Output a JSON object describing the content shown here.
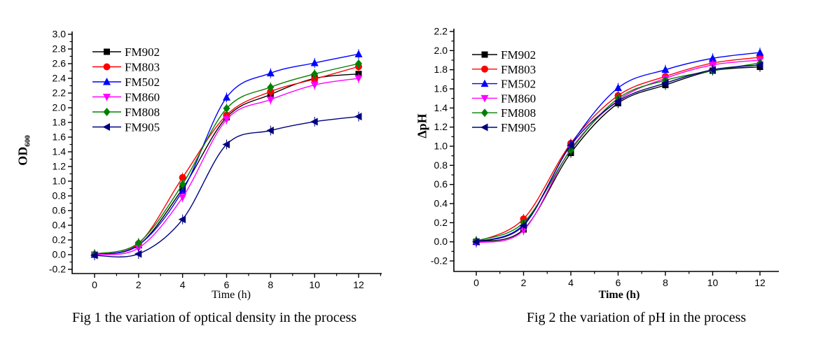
{
  "page": {
    "background": "#ffffff"
  },
  "chart_data": [
    {
      "id": "fig1",
      "type": "line",
      "caption": "Fig 1 the variation of optical density in the process",
      "xlabel": "Time (h)",
      "ylabel": "OD",
      "ylabel_sub": "600",
      "x": [
        0,
        2,
        4,
        6,
        8,
        10,
        12
      ],
      "xticks": [
        "0",
        "2",
        "4",
        "6",
        "8",
        "10",
        "12"
      ],
      "xlim": [
        0,
        12
      ],
      "ylim": [
        -0.2,
        3.0
      ],
      "ytick_step": 0.2,
      "yticks": [
        "3.0",
        "2.8",
        "2.6",
        "2.4",
        "2.2",
        "2.0",
        "1.8",
        "1.6",
        "1.4",
        "1.2",
        "1.0",
        "0.8",
        "0.6",
        "0.4",
        "0.2",
        "0.0",
        "-0.2"
      ],
      "grid": false,
      "legend_position": "upper-left",
      "series": [
        {
          "name": "FM902",
          "color": "#000000",
          "marker": "square",
          "values": [
            0.0,
            0.13,
            0.9,
            1.87,
            2.18,
            2.4,
            2.46
          ]
        },
        {
          "name": "FM803",
          "color": "#ff0000",
          "marker": "circle",
          "values": [
            0.0,
            0.15,
            1.05,
            1.9,
            2.22,
            2.39,
            2.56
          ]
        },
        {
          "name": "FM502",
          "color": "#0000ff",
          "marker": "triangle-up",
          "values": [
            0.0,
            0.13,
            0.87,
            2.14,
            2.47,
            2.61,
            2.73
          ]
        },
        {
          "name": "FM860",
          "color": "#ff00ff",
          "marker": "triangle-down",
          "values": [
            0.0,
            0.09,
            0.78,
            1.84,
            2.11,
            2.31,
            2.4
          ]
        },
        {
          "name": "FM808",
          "color": "#008000",
          "marker": "diamond",
          "values": [
            0.01,
            0.16,
            0.96,
            1.99,
            2.28,
            2.46,
            2.6
          ]
        },
        {
          "name": "FM905",
          "color": "#000080",
          "marker": "triangle-left",
          "values": [
            -0.01,
            0.01,
            0.48,
            1.5,
            1.69,
            1.81,
            1.88
          ]
        }
      ]
    },
    {
      "id": "fig2",
      "type": "line",
      "caption": "Fig 2 the variation of pH in the process",
      "xlabel": "Time (h)",
      "ylabel": "ΔpH",
      "ylabel_sub": "",
      "x": [
        0,
        2,
        4,
        6,
        8,
        10,
        12
      ],
      "xticks": [
        "0",
        "2",
        "4",
        "6",
        "8",
        "10",
        "12"
      ],
      "xlim": [
        0,
        12
      ],
      "ylim": [
        -0.2,
        2.2
      ],
      "ytick_step": 0.2,
      "yticks": [
        "2.2",
        "2.0",
        "1.8",
        "1.6",
        "1.4",
        "1.2",
        "1.0",
        "0.8",
        "0.6",
        "0.4",
        "0.2",
        "0.0",
        "-0.2"
      ],
      "grid": false,
      "legend_position": "upper-left",
      "series": [
        {
          "name": "FM902",
          "color": "#000000",
          "marker": "square",
          "values": [
            0.0,
            0.13,
            0.93,
            1.45,
            1.64,
            1.79,
            1.83
          ]
        },
        {
          "name": "FM803",
          "color": "#ff0000",
          "marker": "circle",
          "values": [
            0.0,
            0.24,
            1.03,
            1.53,
            1.73,
            1.87,
            1.93
          ]
        },
        {
          "name": "FM502",
          "color": "#0000ff",
          "marker": "triangle-up",
          "values": [
            0.0,
            0.18,
            1.02,
            1.61,
            1.8,
            1.92,
            1.98
          ]
        },
        {
          "name": "FM860",
          "color": "#ff00ff",
          "marker": "triangle-down",
          "values": [
            -0.01,
            0.12,
            0.97,
            1.48,
            1.71,
            1.85,
            1.9
          ]
        },
        {
          "name": "FM808",
          "color": "#008000",
          "marker": "diamond",
          "values": [
            0.01,
            0.2,
            0.96,
            1.5,
            1.69,
            1.79,
            1.87
          ]
        },
        {
          "name": "FM905",
          "color": "#000080",
          "marker": "triangle-left",
          "values": [
            0.0,
            0.17,
            1.01,
            1.47,
            1.66,
            1.8,
            1.85
          ]
        }
      ]
    }
  ]
}
